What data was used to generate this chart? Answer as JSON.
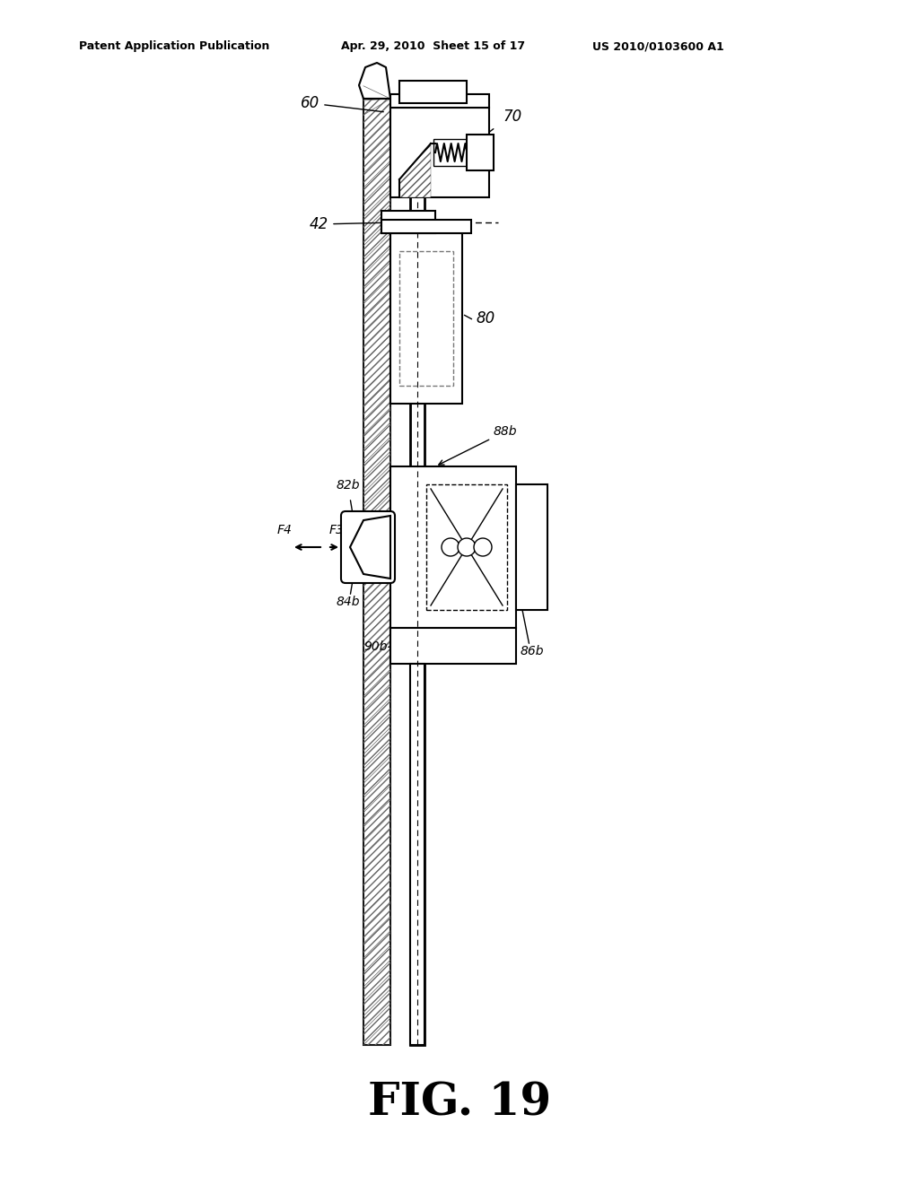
{
  "title": "FIG. 19",
  "header_left": "Patent Application Publication",
  "header_mid": "Apr. 29, 2010  Sheet 15 of 17",
  "header_right": "US 2010/0103600 A1",
  "bg_color": "#ffffff",
  "line_color": "#000000",
  "gray_color": "#888888",
  "light_gray": "#cccccc",
  "hatch_color": "#555555"
}
